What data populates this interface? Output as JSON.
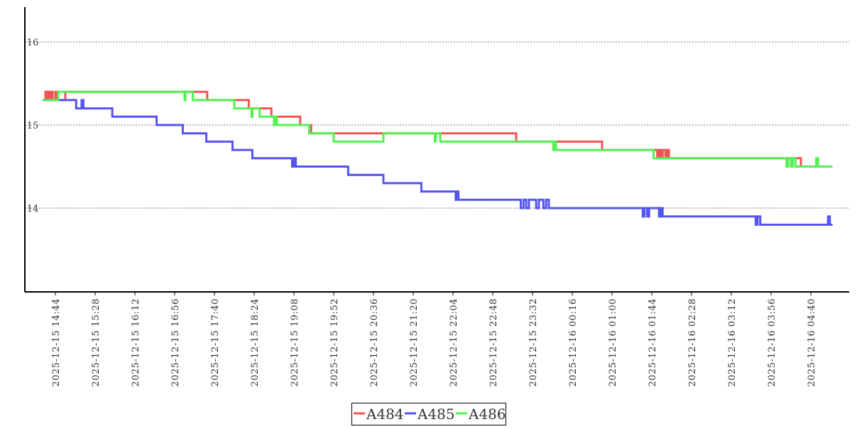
{
  "chart_data": {
    "type": "line",
    "title": "",
    "xlabel": "",
    "ylabel": "",
    "x_unit": "minutes since 2025-12-15 14:44",
    "ylim": [
      13.0,
      16.42
    ],
    "y_ticks": [
      14,
      15,
      16
    ],
    "y_tick_labels": [
      "14",
      "15",
      "16"
    ],
    "grid": "horizontal dotted",
    "legend_position": "bottom-center",
    "x_tick_labels": [
      "2025-12-15 14:44",
      "2025-12-15 15:28",
      "2025-12-15 16:12",
      "2025-12-15 16:56",
      "2025-12-15 17:40",
      "2025-12-15 18:24",
      "2025-12-15 19:08",
      "2025-12-15 19:52",
      "2025-12-15 20:36",
      "2025-12-15 21:20",
      "2025-12-15 22:04",
      "2025-12-15 22:48",
      "2025-12-15 23:32",
      "2025-12-16 00:16",
      "2025-12-16 01:00",
      "2025-12-16 01:44",
      "2025-12-16 02:28",
      "2025-12-16 03:12",
      "2025-12-16 03:56",
      "2025-12-16 04:40"
    ],
    "x_tick_interval_minutes": 44,
    "series": [
      {
        "name": "A484",
        "color": "#f05454",
        "steps": [
          [
            -14,
            15.3
          ],
          [
            -11,
            15.4
          ],
          [
            -10,
            15.3
          ],
          [
            -8,
            15.4
          ],
          [
            -7,
            15.3
          ],
          [
            -5,
            15.4
          ],
          [
            -3,
            15.3
          ],
          [
            0,
            15.4
          ],
          [
            2,
            15.3
          ],
          [
            11,
            15.4
          ],
          [
            168,
            15.3
          ],
          [
            214,
            15.2
          ],
          [
            239,
            15.1
          ],
          [
            271,
            15.0
          ],
          [
            281,
            14.9
          ],
          [
            282,
            15.0
          ],
          [
            283,
            14.9
          ],
          [
            510,
            14.8
          ],
          [
            605,
            14.7
          ],
          [
            666,
            14.6
          ],
          [
            668,
            14.7
          ],
          [
            670,
            14.6
          ],
          [
            672,
            14.7
          ],
          [
            675,
            14.6
          ],
          [
            677,
            14.7
          ],
          [
            679,
            14.6
          ],
          [
            825,
            14.5
          ],
          [
            860,
            14.5
          ]
        ]
      },
      {
        "name": "A485",
        "color": "#5454f0",
        "steps": [
          [
            -14,
            15.3
          ],
          [
            23,
            15.2
          ],
          [
            29,
            15.3
          ],
          [
            31,
            15.2
          ],
          [
            63,
            15.1
          ],
          [
            112,
            15.0
          ],
          [
            141,
            14.9
          ],
          [
            167,
            14.8
          ],
          [
            196,
            14.7
          ],
          [
            218,
            14.6
          ],
          [
            262,
            14.5
          ],
          [
            264,
            14.6
          ],
          [
            266,
            14.5
          ],
          [
            324,
            14.4
          ],
          [
            363,
            14.3
          ],
          [
            405,
            14.2
          ],
          [
            443,
            14.1
          ],
          [
            444,
            14.2
          ],
          [
            446,
            14.1
          ],
          [
            515,
            14.0
          ],
          [
            518,
            14.1
          ],
          [
            521,
            14.0
          ],
          [
            524,
            14.1
          ],
          [
            532,
            14.0
          ],
          [
            535,
            14.1
          ],
          [
            540,
            14.0
          ],
          [
            543,
            14.1
          ],
          [
            546,
            14.0
          ],
          [
            650,
            13.9
          ],
          [
            652,
            14.0
          ],
          [
            655,
            13.9
          ],
          [
            657,
            14.0
          ],
          [
            668,
            13.9
          ],
          [
            670,
            14.0
          ],
          [
            672,
            13.9
          ],
          [
            775,
            13.8
          ],
          [
            777,
            13.9
          ],
          [
            780,
            13.8
          ],
          [
            855,
            13.9
          ],
          [
            857,
            13.8
          ],
          [
            860,
            13.8
          ]
        ]
      },
      {
        "name": "A486",
        "color": "#54f054",
        "steps": [
          [
            -14,
            15.3
          ],
          [
            3,
            15.4
          ],
          [
            143,
            15.3
          ],
          [
            144,
            15.4
          ],
          [
            152,
            15.3
          ],
          [
            198,
            15.2
          ],
          [
            217,
            15.1
          ],
          [
            218,
            15.2
          ],
          [
            226,
            15.1
          ],
          [
            242,
            15.0
          ],
          [
            243,
            15.1
          ],
          [
            245,
            15.0
          ],
          [
            281,
            14.9
          ],
          [
            308,
            14.8
          ],
          [
            363,
            14.9
          ],
          [
            420,
            14.8
          ],
          [
            421,
            14.9
          ],
          [
            426,
            14.8
          ],
          [
            551,
            14.7
          ],
          [
            552,
            14.8
          ],
          [
            554,
            14.7
          ],
          [
            662,
            14.6
          ],
          [
            809,
            14.5
          ],
          [
            811,
            14.6
          ],
          [
            814,
            14.5
          ],
          [
            816,
            14.6
          ],
          [
            819,
            14.5
          ],
          [
            842,
            14.6
          ],
          [
            844,
            14.5
          ],
          [
            860,
            14.5
          ]
        ]
      }
    ]
  }
}
